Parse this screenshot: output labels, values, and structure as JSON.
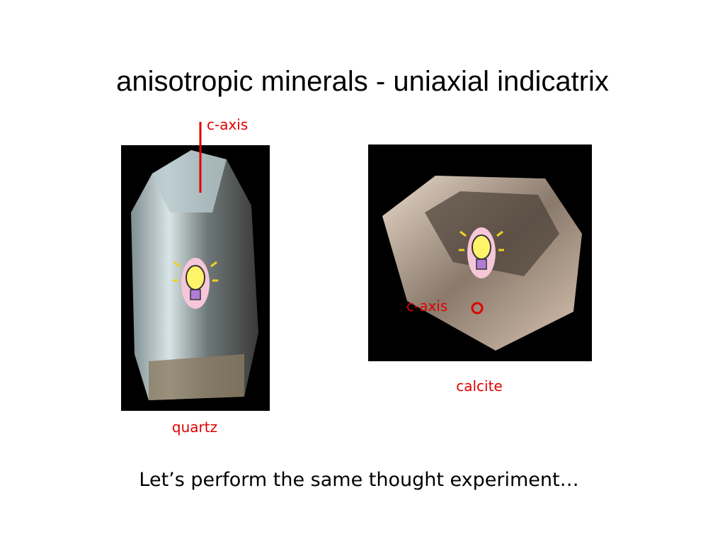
{
  "slide": {
    "title": "anisotropic minerals - uniaxial indicatrix",
    "quartz": {
      "axis_label": "c-axis",
      "name": "quartz"
    },
    "calcite": {
      "axis_label": "c-axis",
      "name": "calcite"
    },
    "caption": "Let’s perform the same thought experiment…"
  }
}
